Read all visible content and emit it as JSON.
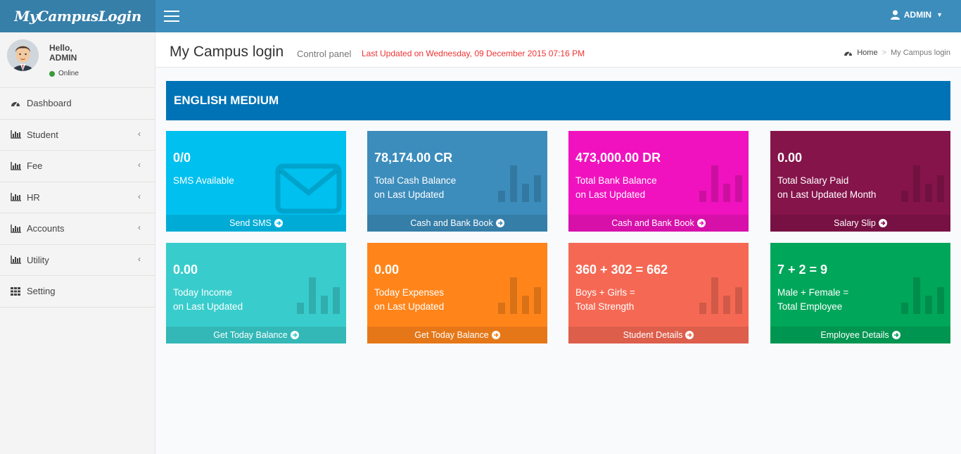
{
  "header": {
    "logo": "MyCampusLogin",
    "user": "ADMIN"
  },
  "user_panel": {
    "greeting": "Hello,",
    "name": "ADMIN",
    "status": "Online"
  },
  "sidebar": {
    "items": [
      {
        "label": "Dashboard"
      },
      {
        "label": "Student"
      },
      {
        "label": "Fee"
      },
      {
        "label": "HR"
      },
      {
        "label": "Accounts"
      },
      {
        "label": "Utility"
      },
      {
        "label": "Setting"
      }
    ]
  },
  "content_header": {
    "title": "My Campus login",
    "subtitle": "Control panel",
    "last_updated": "Last Updated on Wednesday, 09 December 2015 07:16 PM"
  },
  "breadcrumb": {
    "home": "Home",
    "current": "My Campus login"
  },
  "banner": "ENGLISH MEDIUM",
  "boxes": [
    {
      "value": "0/0",
      "line1": "SMS Available",
      "line2": "",
      "footer": "Send SMS",
      "color": "#00c0ef",
      "icon": "envelope-icon"
    },
    {
      "value": "78,174.00 CR",
      "line1": "Total Cash Balance",
      "line2": "on Last Updated",
      "footer": "Cash and Bank Book",
      "color": "#3c8dbc",
      "icon": "bar-chart-icon"
    },
    {
      "value": "473,000.00 DR",
      "line1": "Total Bank Balance",
      "line2": "on Last Updated",
      "footer": "Cash and Bank Book",
      "color": "#f012be",
      "icon": "bar-chart-icon"
    },
    {
      "value": "0.00",
      "line1": "Total Salary Paid",
      "line2": "on Last Updated Month",
      "footer": "Salary Slip",
      "color": "#85144b",
      "icon": "bar-chart-icon"
    },
    {
      "value": "0.00",
      "line1": "Today Income",
      "line2": "on Last Updated",
      "footer": "Get Today Balance",
      "color": "#39cccc",
      "icon": "bar-chart-icon"
    },
    {
      "value": "0.00",
      "line1": "Today Expenses",
      "line2": "on Last Updated",
      "footer": "Get Today Balance",
      "color": "#ff851b",
      "icon": "bar-chart-icon"
    },
    {
      "value": "360 + 302 = 662",
      "line1": "Boys + Girls =",
      "line2": "Total Strength",
      "footer": "Student Details",
      "color": "#f56954",
      "icon": "bar-chart-icon"
    },
    {
      "value": "7 + 2 = 9",
      "line1": "Male + Female =",
      "line2": "Total Employee",
      "footer": "Employee Details",
      "color": "#00a65a",
      "icon": "bar-chart-icon"
    }
  ]
}
